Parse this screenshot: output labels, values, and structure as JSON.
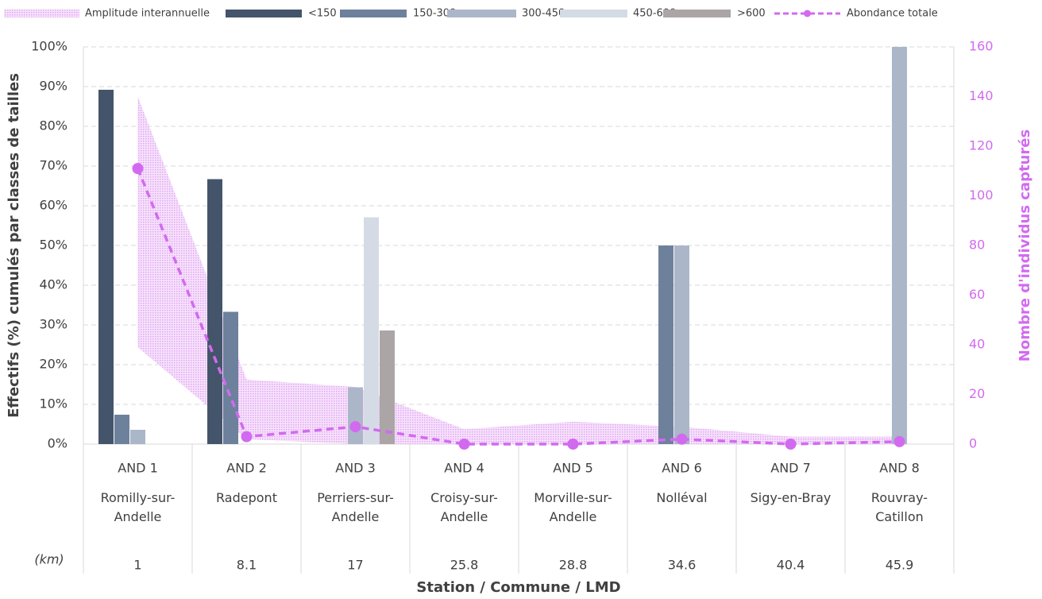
{
  "chart_data": {
    "type": "bar",
    "categories": [
      "AND 1",
      "AND 2",
      "AND 3",
      "AND 4",
      "AND 5",
      "AND 6",
      "AND 7",
      "AND 8"
    ],
    "communes": [
      "Romilly-sur-Andelle",
      "Radepont",
      "Perriers-sur-Andelle",
      "Croisy-sur-Andelle",
      "Morville-sur-Andelle",
      "Nolléval",
      "Sigy-en-Bray",
      "Rouvray-Catillon"
    ],
    "distance_label": "(km)",
    "distances": [
      1,
      8.1,
      17,
      25.8,
      28.8,
      34.6,
      40.4,
      45.9
    ],
    "x_label": "Station / Commune / LMD",
    "y_label": "Effectifs (%) cumulés par classes de tailles",
    "y2_label": "Nombre d'individus capturés",
    "ylim": [
      0,
      100
    ],
    "yticks": [
      {
        "value": 0,
        "label": "0%"
      },
      {
        "value": 10,
        "label": "10%"
      },
      {
        "value": 20,
        "label": "20%"
      },
      {
        "value": 30,
        "label": "30%"
      },
      {
        "value": 40,
        "label": "40%"
      },
      {
        "value": 50,
        "label": "50%"
      },
      {
        "value": 60,
        "label": "60%"
      },
      {
        "value": 70,
        "label": "70%"
      },
      {
        "value": 80,
        "label": "80%"
      },
      {
        "value": 90,
        "label": "90%"
      },
      {
        "value": 100,
        "label": "100%"
      }
    ],
    "y2lim": [
      0,
      160
    ],
    "y2ticks": [
      0,
      20,
      40,
      60,
      80,
      100,
      120,
      140,
      160
    ],
    "grid": true,
    "band": {
      "name": "Amplitude interannuelle",
      "color": "#e8b4f5",
      "axis": "y2",
      "low": [
        39,
        2,
        0,
        0,
        0,
        0,
        0,
        0
      ],
      "high": [
        140,
        26,
        23,
        6,
        9,
        7,
        3,
        3
      ]
    },
    "series": [
      {
        "name": "<150",
        "color": "#44546a",
        "values": [
          89.2,
          66.7,
          0,
          0,
          0,
          0,
          0,
          0
        ]
      },
      {
        "name": "150-300",
        "color": "#6d819c",
        "values": [
          7.4,
          33.3,
          0,
          0,
          0,
          50,
          0,
          0
        ]
      },
      {
        "name": "300-450",
        "color": "#acb6c9",
        "values": [
          3.6,
          0,
          14.3,
          0,
          0,
          50,
          0,
          100
        ]
      },
      {
        "name": "450-600",
        "color": "#d5dbe5",
        "values": [
          0,
          0,
          57.1,
          0,
          0,
          0,
          0,
          0
        ]
      },
      {
        "name": ">600",
        "color": "#aba5a6",
        "values": [
          0,
          0,
          28.6,
          0,
          0,
          0,
          0,
          0
        ]
      },
      {
        "name": "Abondance totale",
        "color": "#d26af0",
        "type": "line",
        "axis": "y2",
        "values": [
          111,
          3,
          7,
          0,
          0,
          2,
          0,
          1
        ]
      }
    ]
  }
}
